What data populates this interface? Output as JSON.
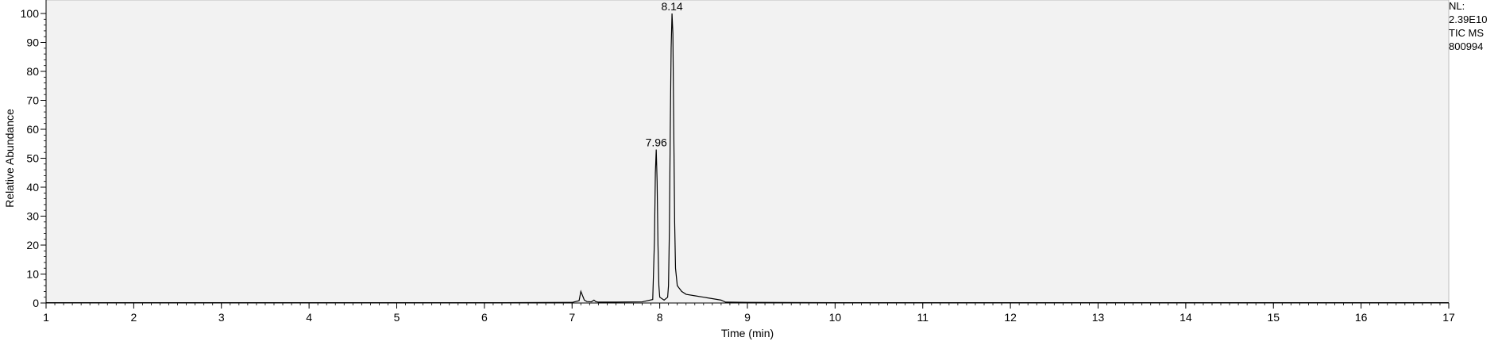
{
  "chart_data": {
    "type": "line",
    "xlabel": "Time (min)",
    "ylabel": "Relative Abundance",
    "xlim": [
      1,
      17
    ],
    "ylim": [
      0,
      100
    ],
    "x_ticks": [
      "1",
      "2",
      "3",
      "4",
      "5",
      "6",
      "7",
      "8",
      "9",
      "10",
      "11",
      "12",
      "13",
      "14",
      "15",
      "16",
      "17"
    ],
    "y_ticks": [
      "0",
      "10",
      "20",
      "30",
      "40",
      "50",
      "60",
      "70",
      "80",
      "90",
      "100"
    ],
    "grid": false,
    "legend": "none",
    "plot_background": "#f2f2f2",
    "line_color": "#000000",
    "peak_labels": [
      {
        "x": 7.96,
        "y": 53,
        "label": "7.96"
      },
      {
        "x": 8.14,
        "y": 100,
        "label": "8.14"
      }
    ],
    "info": [
      "NL:",
      "2.39E10",
      "TIC  MS",
      "800994"
    ],
    "series": [
      {
        "x": [
          1.0,
          2.0,
          3.0,
          4.0,
          5.0,
          6.0,
          7.0,
          7.08,
          7.1,
          7.12,
          7.14,
          7.17,
          7.22,
          7.25,
          7.27,
          7.3,
          7.5,
          7.8,
          7.92,
          7.94,
          7.95,
          7.96,
          7.97,
          7.98,
          7.99,
          8.0,
          8.05,
          8.09,
          8.1,
          8.11,
          8.12,
          8.13,
          8.14,
          8.15,
          8.16,
          8.17,
          8.18,
          8.2,
          8.25,
          8.3,
          8.4,
          8.5,
          8.6,
          8.7,
          8.75,
          9.0,
          10.0,
          12.0,
          14.0,
          16.0,
          17.0
        ],
        "y": [
          0.1,
          0.1,
          0.1,
          0.1,
          0.1,
          0.1,
          0.2,
          0.8,
          4.0,
          2.5,
          1.0,
          0.5,
          0.4,
          1.0,
          0.5,
          0.3,
          0.3,
          0.4,
          1.2,
          22.0,
          45.0,
          53.0,
          42.0,
          20.0,
          6.0,
          2.0,
          1.0,
          2.0,
          6.0,
          25.0,
          60.0,
          88.0,
          100.0,
          93.0,
          60.0,
          28.0,
          12.0,
          6.0,
          4.0,
          3.0,
          2.5,
          2.0,
          1.5,
          1.0,
          0.3,
          0.2,
          0.1,
          0.1,
          0.1,
          0.1,
          0.1
        ]
      }
    ]
  }
}
